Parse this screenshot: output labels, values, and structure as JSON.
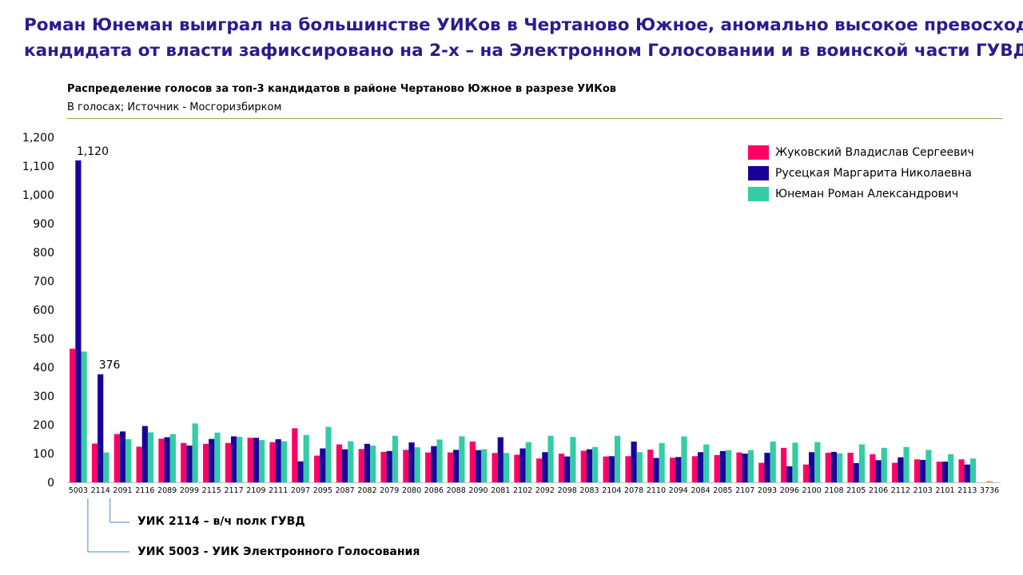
{
  "header": {
    "line1": "Роман Юнеман выиграл на большинстве УИКов в Чертаново Южное, аномально высокое превосходство",
    "line2": "кандидата от власти зафиксировано на 2-х – на Электронном Голосовании и в воинской части ГУВД…"
  },
  "chart_data": {
    "type": "bar",
    "title": "Распределение голосов за топ-3 кандидатов в районе Чертаново Южное в разрезе УИКов",
    "subtitle": "В голосах; Источник - Мосгоризбирком",
    "ylim": [
      0,
      1200
    ],
    "yticks": [
      0,
      100,
      200,
      300,
      400,
      500,
      600,
      700,
      800,
      900,
      1000,
      1100,
      1200
    ],
    "ytick_labels": [
      "0",
      "100",
      "200",
      "300",
      "400",
      "500",
      "600",
      "700",
      "800",
      "900",
      "1,000",
      "1,100",
      "1,200"
    ],
    "legend_position": "top-right",
    "grid": false,
    "categories": [
      "5003",
      "2114",
      "2091",
      "2116",
      "2089",
      "2099",
      "2115",
      "2117",
      "2109",
      "2111",
      "2097",
      "2095",
      "2087",
      "2082",
      "2079",
      "2080",
      "2086",
      "2088",
      "2090",
      "2081",
      "2102",
      "2092",
      "2098",
      "2083",
      "2104",
      "2078",
      "2110",
      "2094",
      "2084",
      "2085",
      "2107",
      "2093",
      "2096",
      "2100",
      "2108",
      "2105",
      "2106",
      "2112",
      "2103",
      "2101",
      "2113",
      "3736"
    ],
    "series": [
      {
        "name": "Жуковский Владислав Сергеевич",
        "color": "#ff0066",
        "values": [
          465,
          135,
          168,
          124,
          152,
          137,
          134,
          137,
          155,
          140,
          188,
          93,
          132,
          116,
          106,
          113,
          104,
          104,
          142,
          102,
          96,
          83,
          100,
          110,
          90,
          91,
          114,
          86,
          91,
          95,
          104,
          68,
          120,
          62,
          103,
          103,
          98,
          68,
          80,
          72,
          80,
          5
        ]
      },
      {
        "name": "Русецкая Маргарита Николаевна",
        "color": "#1a0099",
        "values": [
          1120,
          376,
          177,
          196,
          157,
          128,
          151,
          160,
          155,
          150,
          73,
          118,
          115,
          134,
          109,
          139,
          126,
          113,
          112,
          157,
          118,
          105,
          90,
          115,
          91,
          142,
          85,
          88,
          105,
          109,
          100,
          103,
          56,
          105,
          106,
          67,
          77,
          87,
          78,
          72,
          62,
          0
        ]
      },
      {
        "name": "Юнеман Роман Александрович",
        "color": "#33cca6",
        "values": [
          455,
          104,
          150,
          174,
          168,
          205,
          173,
          158,
          147,
          143,
          165,
          193,
          143,
          128,
          162,
          122,
          149,
          160,
          115,
          102,
          140,
          162,
          158,
          123,
          162,
          105,
          137,
          160,
          132,
          112,
          112,
          142,
          138,
          140,
          101,
          132,
          120,
          123,
          113,
          98,
          83,
          0
        ]
      }
    ],
    "small_bar_color": "#ff9966",
    "data_labels": [
      {
        "category": "5003",
        "value": "1,120"
      },
      {
        "category": "2114",
        "value": "376"
      }
    ],
    "annotations": [
      {
        "category": "2114",
        "text": "УИК 2114 – в/ч полк ГУВД"
      },
      {
        "category": "5003",
        "text": "УИК 5003 - УИК Электронного Голосования"
      }
    ]
  },
  "colors": {
    "headline": "#2e1a8c",
    "rule": "#7fae47"
  }
}
